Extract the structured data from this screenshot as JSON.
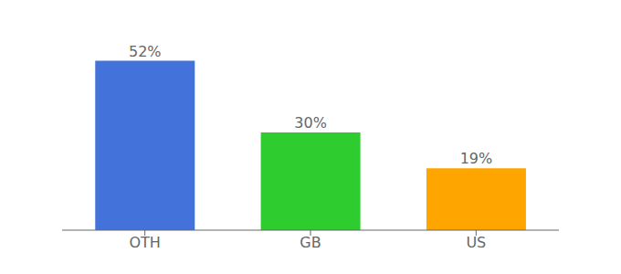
{
  "chart_data": {
    "type": "bar",
    "categories": [
      "OTH",
      "GB",
      "US"
    ],
    "values": [
      52,
      30,
      19
    ],
    "value_labels": [
      "52%",
      "30%",
      "19%"
    ],
    "data_labels": true,
    "colors": [
      "#4472db",
      "#2ecc2e",
      "#ffa500"
    ],
    "ylim": [
      0,
      60
    ],
    "tick_labels": "x",
    "grid": false
  }
}
